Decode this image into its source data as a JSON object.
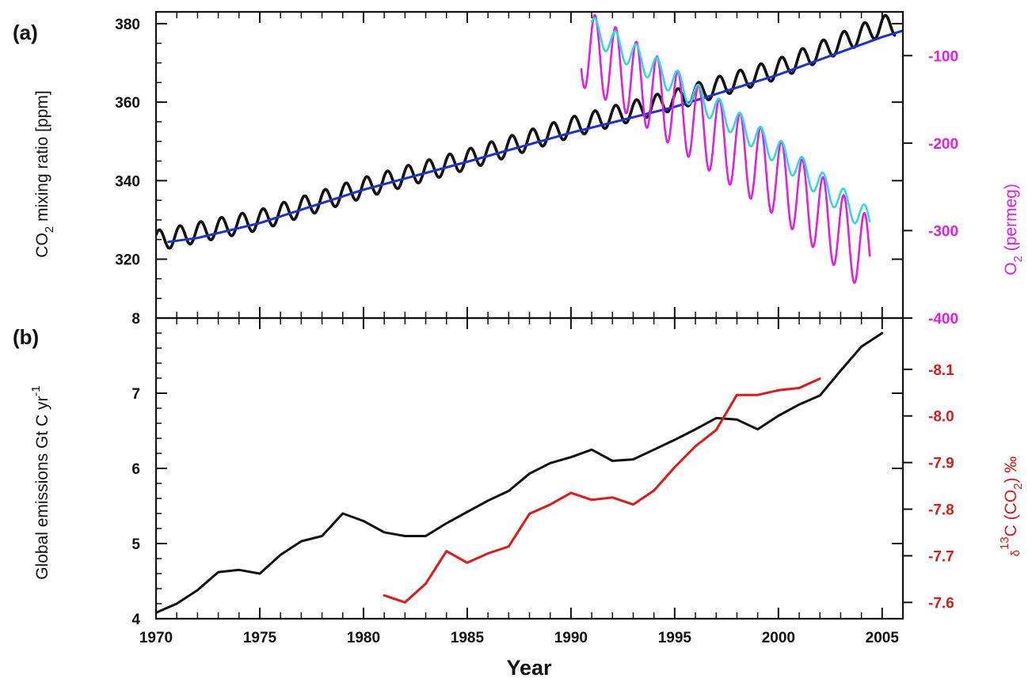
{
  "chart_data": [
    {
      "panel": "(a)",
      "type": "line",
      "xlim": [
        1970,
        2006
      ],
      "y_left": {
        "label": "CO",
        "label_sub": "2",
        "label_rest": " mixing ratio [ppm]",
        "ylim": [
          305,
          383
        ],
        "ticks": [
          320,
          340,
          360,
          380
        ]
      },
      "y_right": {
        "label": "O",
        "label_sub": "2",
        "label_rest": " (permeg)",
        "ylim": [
          -400,
          -50
        ],
        "ticks": [
          -100,
          -200,
          -300,
          -400
        ],
        "color": "#e020e0"
      },
      "series": [
        {
          "axis": "left",
          "color": "#111111",
          "seasonal_amplitude": 2.6,
          "start_year": 1970,
          "end_year": 2005.6,
          "trend": [
            [
              1970,
              324.7
            ],
            [
              1975,
              330.0
            ],
            [
              1980,
              338.2
            ],
            [
              1985,
              345.4
            ],
            [
              1990,
              353.6
            ],
            [
              1995,
              360.6
            ],
            [
              2000,
              368.5
            ],
            [
              2005,
              379.5
            ]
          ]
        },
        {
          "axis": "left",
          "color": "#1f2fd0",
          "points": [
            [
              1970.6,
              324.4
            ],
            [
              1972,
              325.4
            ],
            [
              1975,
              329.2
            ],
            [
              1980,
              337.7
            ],
            [
              1985,
              344.8
            ],
            [
              1990,
              352.2
            ],
            [
              1995,
              358.8
            ],
            [
              2000,
              367.0
            ],
            [
              2005,
              376.6
            ],
            [
              2006,
              378.2
            ]
          ]
        },
        {
          "axis": "right",
          "color": "#e020e0",
          "seasonal_amplitude": 45,
          "start_year": 1990.5,
          "end_year": 2004.4,
          "trend": [
            [
              1990.5,
              -90
            ],
            [
              1992,
              -110
            ],
            [
              1995,
              -160
            ],
            [
              2000,
              -240
            ],
            [
              2004.4,
              -330
            ]
          ]
        },
        {
          "axis": "right",
          "color": "#30d8e0",
          "seasonal_amplitude": 15,
          "start_year": 1991,
          "end_year": 2004.4,
          "trend": [
            [
              1991,
              -70
            ],
            [
              1995,
              -130
            ],
            [
              2000,
              -210
            ],
            [
              2004.4,
              -290
            ]
          ]
        }
      ]
    },
    {
      "panel": "(b)",
      "type": "line",
      "xlim": [
        1970,
        2006
      ],
      "xticks": [
        1970,
        1975,
        1980,
        1985,
        1990,
        1995,
        2000,
        2005
      ],
      "xlabel": "Year",
      "y_left": {
        "label": "Global emissions Gt C yr",
        "label_sup": "-1",
        "ylim": [
          4,
          8
        ],
        "ticks": [
          4,
          5,
          6,
          7,
          8
        ]
      },
      "y_right": {
        "label_delta": "δ",
        "label_sup": "13",
        "label_rest": "C (CO",
        "label_sub": "2",
        "label_end": ") ‰",
        "ylim": [
          -7.565,
          -8.21
        ],
        "ticks": [
          -7.6,
          -7.7,
          -7.8,
          -7.9,
          -8.0,
          -8.1
        ],
        "tick_labels": [
          "-7.6",
          "-7.7",
          "-7.8",
          "-7.9",
          "-8.0",
          "-8.1"
        ],
        "color": "#e01818"
      },
      "series": [
        {
          "axis": "left",
          "color": "#111111",
          "points": [
            [
              1970,
              4.08
            ],
            [
              1971,
              4.2
            ],
            [
              1972,
              4.38
            ],
            [
              1973,
              4.62
            ],
            [
              1974,
              4.65
            ],
            [
              1975,
              4.6
            ],
            [
              1976,
              4.85
            ],
            [
              1977,
              5.03
            ],
            [
              1978,
              5.1
            ],
            [
              1979,
              5.4
            ],
            [
              1980,
              5.3
            ],
            [
              1981,
              5.15
            ],
            [
              1982,
              5.1
            ],
            [
              1983,
              5.1
            ],
            [
              1984,
              5.27
            ],
            [
              1985,
              5.42
            ],
            [
              1986,
              5.57
            ],
            [
              1987,
              5.7
            ],
            [
              1988,
              5.93
            ],
            [
              1989,
              6.07
            ],
            [
              1990,
              6.15
            ],
            [
              1991,
              6.25
            ],
            [
              1992,
              6.1
            ],
            [
              1993,
              6.12
            ],
            [
              1994,
              6.25
            ],
            [
              1995,
              6.38
            ],
            [
              1996,
              6.52
            ],
            [
              1997,
              6.67
            ],
            [
              1998,
              6.65
            ],
            [
              1999,
              6.52
            ],
            [
              2000,
              6.7
            ],
            [
              2001,
              6.85
            ],
            [
              2002,
              6.97
            ],
            [
              2003,
              7.3
            ],
            [
              2004,
              7.62
            ],
            [
              2005,
              7.8
            ]
          ]
        },
        {
          "axis": "right",
          "color": "#e01818",
          "points": [
            [
              1981,
              -7.615
            ],
            [
              1982,
              -7.6
            ],
            [
              1983,
              -7.64
            ],
            [
              1984,
              -7.71
            ],
            [
              1985,
              -7.685
            ],
            [
              1986,
              -7.705
            ],
            [
              1987,
              -7.72
            ],
            [
              1988,
              -7.79
            ],
            [
              1989,
              -7.81
            ],
            [
              1990,
              -7.835
            ],
            [
              1991,
              -7.82
            ],
            [
              1992,
              -7.825
            ],
            [
              1993,
              -7.81
            ],
            [
              1994,
              -7.84
            ],
            [
              1995,
              -7.89
            ],
            [
              1996,
              -7.935
            ],
            [
              1997,
              -7.97
            ],
            [
              1998,
              -8.045
            ],
            [
              1999,
              -8.045
            ],
            [
              2000,
              -8.055
            ],
            [
              2001,
              -8.06
            ],
            [
              2002,
              -8.08
            ]
          ]
        }
      ]
    }
  ]
}
